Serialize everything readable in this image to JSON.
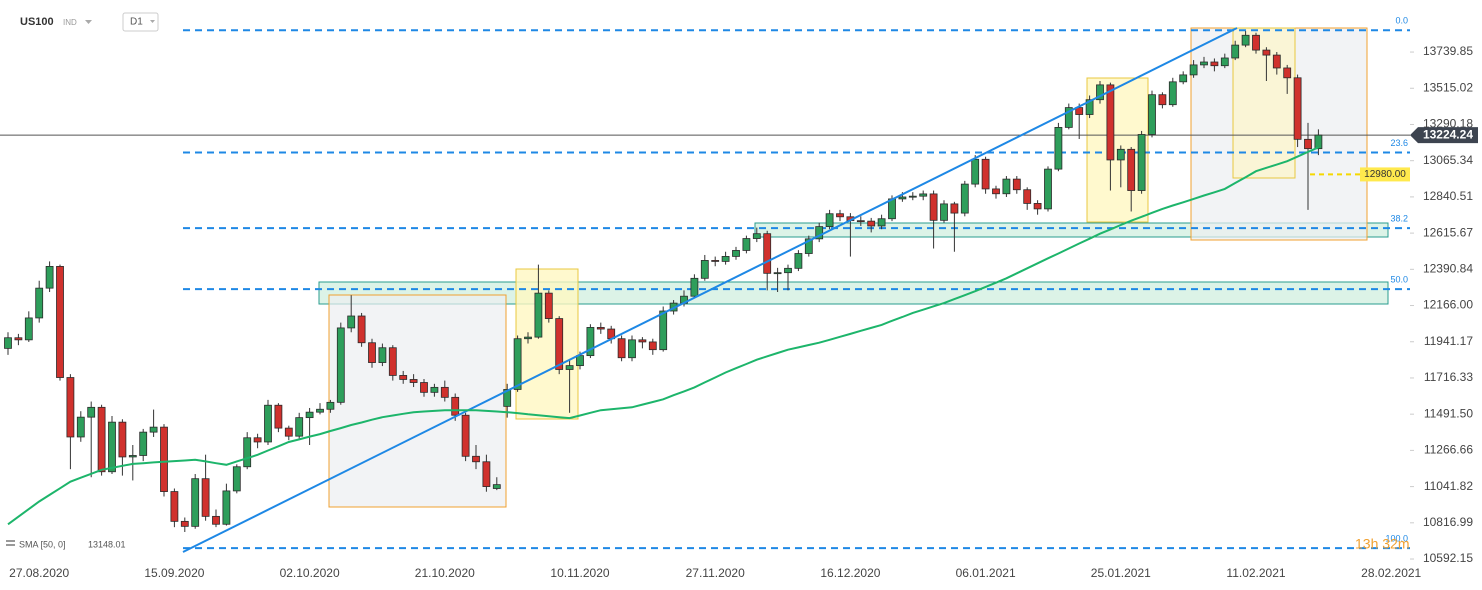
{
  "header": {
    "symbol": "US100",
    "market": "IND",
    "interval": "D1"
  },
  "chart_data": {
    "type": "candlestick",
    "up_color": "#2e9e5b",
    "down_color": "#d0312d",
    "ylim": [
      10524,
      14063
    ],
    "yticks": [
      13739.85,
      13515.02,
      13290.18,
      13065.34,
      12840.51,
      12615.67,
      12390.84,
      {
        "value": 12166,
        "label": "12166.00"
      },
      11941.17,
      11716.33,
      {
        "value": 11491.5,
        "label": "11491.50"
      },
      11266.66,
      11041.82,
      10816.99,
      10592.15
    ],
    "categories": [
      null,
      null,
      null,
      "27.08.2020",
      null,
      null,
      null,
      null,
      null,
      null,
      null,
      null,
      null,
      null,
      null,
      null,
      "15.09.2020",
      null,
      null,
      null,
      null,
      null,
      null,
      null,
      null,
      null,
      null,
      null,
      null,
      "02.10.2020",
      null,
      null,
      null,
      null,
      null,
      null,
      null,
      null,
      null,
      null,
      null,
      null,
      "21.10.2020",
      null,
      null,
      null,
      null,
      null,
      null,
      null,
      null,
      null,
      null,
      null,
      null,
      "10.11.2020",
      null,
      null,
      null,
      null,
      null,
      null,
      null,
      null,
      null,
      null,
      null,
      null,
      "27.11.2020",
      null,
      null,
      null,
      null,
      null,
      null,
      null,
      null,
      null,
      null,
      null,
      null,
      "16.12.2020",
      null,
      null,
      null,
      null,
      null,
      null,
      null,
      null,
      null,
      null,
      null,
      null,
      "06.01.2021",
      null,
      null,
      null,
      null,
      null,
      null,
      null,
      null,
      null,
      null,
      null,
      null,
      "25.01.2021",
      null,
      null,
      null,
      null,
      null,
      null,
      null,
      null,
      null,
      null,
      null,
      null,
      "11.02.2021",
      null,
      null,
      null,
      null,
      null,
      null,
      null,
      null,
      null,
      null,
      null,
      null,
      "28.02.2021"
    ],
    "ohlc": [
      [
        11900,
        12000,
        11860,
        11966
      ],
      [
        11966,
        11990,
        11920,
        11953
      ],
      [
        11953,
        12130,
        11940,
        12089
      ],
      [
        12089,
        12320,
        12060,
        12274
      ],
      [
        12274,
        12440,
        12250,
        12409
      ],
      [
        12409,
        12420,
        11700,
        11719
      ],
      [
        11719,
        11740,
        11150,
        11350
      ],
      [
        11350,
        11510,
        11320,
        11473
      ],
      [
        11473,
        11570,
        11100,
        11534
      ],
      [
        11534,
        11550,
        11110,
        11134
      ],
      [
        11134,
        11480,
        11120,
        11442
      ],
      [
        11442,
        11460,
        11110,
        11226
      ],
      [
        11226,
        11300,
        11080,
        11235
      ],
      [
        11235,
        11400,
        11200,
        11380
      ],
      [
        11380,
        11520,
        11350,
        11411
      ],
      [
        11411,
        11430,
        10980,
        11011
      ],
      [
        11011,
        11030,
        10790,
        10826
      ],
      [
        10826,
        10850,
        10760,
        10795
      ],
      [
        10795,
        11120,
        10780,
        11091
      ],
      [
        11091,
        11240,
        10830,
        10857
      ],
      [
        10857,
        10900,
        10790,
        10808
      ],
      [
        10808,
        11060,
        10800,
        11015
      ],
      [
        11015,
        11180,
        11000,
        11165
      ],
      [
        11165,
        11380,
        11150,
        11345
      ],
      [
        11345,
        11370,
        11280,
        11319
      ],
      [
        11319,
        11580,
        11300,
        11547
      ],
      [
        11547,
        11560,
        11380,
        11405
      ],
      [
        11405,
        11420,
        11330,
        11355
      ],
      [
        11355,
        11500,
        11340,
        11470
      ],
      [
        11470,
        11530,
        11300,
        11504
      ],
      [
        11504,
        11560,
        11490,
        11522
      ],
      [
        11522,
        11580,
        11500,
        11565
      ],
      [
        11565,
        12060,
        11550,
        12027
      ],
      [
        12027,
        12230,
        12000,
        12101
      ],
      [
        12101,
        12120,
        11910,
        11935
      ],
      [
        11935,
        11960,
        11780,
        11812
      ],
      [
        11812,
        11930,
        11790,
        11904
      ],
      [
        11904,
        11920,
        11700,
        11732
      ],
      [
        11732,
        11760,
        11680,
        11707
      ],
      [
        11707,
        11740,
        11660,
        11688
      ],
      [
        11688,
        11710,
        11600,
        11627
      ],
      [
        11627,
        11680,
        11600,
        11658
      ],
      [
        11658,
        11700,
        11570,
        11596
      ],
      [
        11596,
        11620,
        11450,
        11485
      ],
      [
        11485,
        11500,
        11200,
        11230
      ],
      [
        11230,
        11300,
        11150,
        11196
      ],
      [
        11196,
        11240,
        11010,
        11042
      ],
      [
        11030,
        11100,
        11020,
        11054
      ],
      [
        11540,
        11680,
        11470,
        11645
      ],
      [
        11645,
        11980,
        11630,
        11960
      ],
      [
        11960,
        12000,
        11930,
        11970
      ],
      [
        11970,
        12420,
        11960,
        12243
      ],
      [
        12243,
        12260,
        12060,
        12085
      ],
      [
        12085,
        12100,
        11740,
        11769
      ],
      [
        11769,
        11830,
        11500,
        11793
      ],
      [
        11793,
        11880,
        11770,
        11855
      ],
      [
        11855,
        12050,
        11840,
        12030
      ],
      [
        12030,
        12060,
        11990,
        12020
      ],
      [
        12020,
        12040,
        11930,
        11960
      ],
      [
        11960,
        11980,
        11820,
        11842
      ],
      [
        11842,
        11980,
        11820,
        11953
      ],
      [
        11953,
        11970,
        11900,
        11940
      ],
      [
        11940,
        11960,
        11860,
        11892
      ],
      [
        11892,
        12160,
        11880,
        12132
      ],
      [
        12132,
        12200,
        12110,
        12181
      ],
      [
        12181,
        12260,
        12160,
        12224
      ],
      [
        12224,
        12360,
        12210,
        12335
      ],
      [
        12335,
        12480,
        12320,
        12446
      ],
      [
        12446,
        12470,
        12410,
        12440
      ],
      [
        12440,
        12500,
        12420,
        12471
      ],
      [
        12471,
        12530,
        12450,
        12508
      ],
      [
        12508,
        12600,
        12490,
        12582
      ],
      [
        12582,
        12650,
        12560,
        12612
      ],
      [
        12612,
        12630,
        12260,
        12366
      ],
      [
        12366,
        12400,
        12250,
        12370
      ],
      [
        12370,
        12420,
        12260,
        12397
      ],
      [
        12397,
        12510,
        12380,
        12489
      ],
      [
        12489,
        12600,
        12470,
        12580
      ],
      [
        12580,
        12680,
        12560,
        12656
      ],
      [
        12656,
        12760,
        12640,
        12736
      ],
      [
        12736,
        12760,
        12690,
        12717
      ],
      [
        12717,
        12740,
        12470,
        12693
      ],
      [
        12693,
        12720,
        12660,
        12690
      ],
      [
        12690,
        12710,
        12620,
        12660
      ],
      [
        12660,
        12730,
        12640,
        12705
      ],
      [
        12705,
        12850,
        12690,
        12828
      ],
      [
        12828,
        12870,
        12810,
        12840
      ],
      [
        12840,
        12870,
        12820,
        12845
      ],
      [
        12845,
        12880,
        12820,
        12859
      ],
      [
        12859,
        12880,
        12520,
        12695
      ],
      [
        12695,
        12820,
        12680,
        12797
      ],
      [
        12797,
        12810,
        12500,
        12740
      ],
      [
        12740,
        12940,
        12720,
        12920
      ],
      [
        12920,
        13100,
        12900,
        13074
      ],
      [
        13074,
        13090,
        12860,
        12890
      ],
      [
        12890,
        12910,
        12830,
        12860
      ],
      [
        12860,
        12970,
        12840,
        12951
      ],
      [
        12951,
        12970,
        12860,
        12885
      ],
      [
        12885,
        12900,
        12760,
        12800
      ],
      [
        12800,
        12820,
        12730,
        12766
      ],
      [
        12766,
        13030,
        12750,
        13013
      ],
      [
        13013,
        13300,
        13000,
        13272
      ],
      [
        13272,
        13420,
        13260,
        13395
      ],
      [
        13395,
        13420,
        13200,
        13352
      ],
      [
        13352,
        13470,
        13330,
        13444
      ],
      [
        13444,
        13560,
        13420,
        13536
      ],
      [
        13536,
        13550,
        12880,
        13070
      ],
      [
        13070,
        13160,
        12900,
        13136
      ],
      [
        13136,
        13150,
        12750,
        12880
      ],
      [
        12880,
        13250,
        12860,
        13228
      ],
      [
        13228,
        13500,
        13210,
        13475
      ],
      [
        13475,
        13490,
        13390,
        13413
      ],
      [
        13413,
        13580,
        13400,
        13555
      ],
      [
        13555,
        13620,
        13540,
        13598
      ],
      [
        13598,
        13690,
        13580,
        13660
      ],
      [
        13660,
        13710,
        13640,
        13678
      ],
      [
        13678,
        13700,
        13620,
        13655
      ],
      [
        13655,
        13730,
        13640,
        13703
      ],
      [
        13703,
        13810,
        13690,
        13783
      ],
      [
        13783,
        13870,
        13770,
        13844
      ],
      [
        13844,
        13860,
        13730,
        13752
      ],
      [
        13752,
        13770,
        13560,
        13721
      ],
      [
        13721,
        13740,
        13600,
        13641
      ],
      [
        13641,
        13660,
        13480,
        13580
      ],
      [
        13580,
        13600,
        13150,
        13198
      ],
      [
        13198,
        13300,
        12760,
        13140
      ],
      [
        13140,
        13260,
        13100,
        13224.24
      ],
      null,
      null,
      null,
      null,
      null,
      null,
      null
    ],
    "sma": {
      "name": "SMA [50, 0]",
      "color": "#1db56b",
      "values": [
        10808,
        10855,
        10902,
        10949,
        10990,
        11031,
        11072,
        11097,
        11121,
        11146,
        11158,
        11171,
        11183,
        11187,
        11192,
        11196,
        11200,
        11204,
        11208,
        11198,
        11187,
        11177,
        11198,
        11218,
        11239,
        11266,
        11292,
        11319,
        11335,
        11352,
        11368,
        11387,
        11405,
        11424,
        11440,
        11457,
        11473,
        11483,
        11494,
        11504,
        11508,
        11512,
        11516,
        11516,
        11516,
        11516,
        11512,
        11508,
        11504,
        11498,
        11491,
        11485,
        11479,
        11473,
        11467,
        11483,
        11500,
        11516,
        11522,
        11528,
        11534,
        11551,
        11567,
        11584,
        11609,
        11633,
        11658,
        11689,
        11719,
        11750,
        11777,
        11803,
        11830,
        11851,
        11871,
        11892,
        11906,
        11921,
        11935,
        11953,
        11972,
        11990,
        12009,
        12027,
        12046,
        12071,
        12095,
        12120,
        12140,
        12161,
        12181,
        12206,
        12230,
        12255,
        12282,
        12308,
        12335,
        12366,
        12397,
        12428,
        12459,
        12489,
        12520,
        12551,
        12581,
        12612,
        12639,
        12666,
        12693,
        12717,
        12742,
        12766,
        12787,
        12807,
        12828,
        12849,
        12869,
        12890,
        12927,
        12963,
        13000,
        13021,
        13041,
        13062,
        13091,
        13120,
        13148.01,
        null,
        null,
        null,
        null,
        null,
        null,
        null
      ]
    },
    "fib_levels": [
      {
        "level": "0.0",
        "price": 13875
      },
      {
        "level": "23.6",
        "price": 13116
      },
      {
        "level": "38.2",
        "price": 12647
      },
      {
        "level": "50.0",
        "price": 12268
      },
      {
        "level": "100.0",
        "price": 10660
      }
    ],
    "last_price": 13224.24,
    "alert_level": {
      "value": 12980,
      "label": "12980.00"
    },
    "countdown": "13h 32m"
  }
}
